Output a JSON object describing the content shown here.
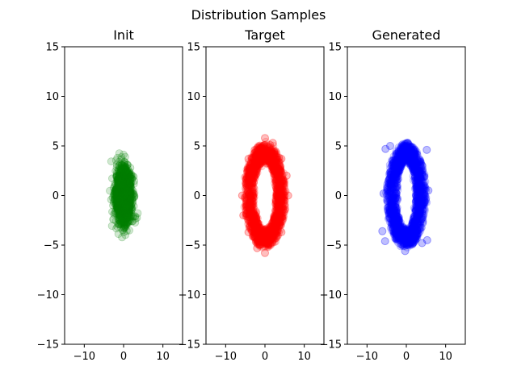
{
  "figure": {
    "title": "Distribution Samples"
  },
  "chart_data": [
    {
      "type": "scatter",
      "title": "Init",
      "xlabel": "",
      "ylabel": "",
      "xlim": [
        -15,
        15
      ],
      "ylim": [
        -15,
        15
      ],
      "xticks": [
        -10,
        0,
        10
      ],
      "yticks": [
        -15,
        -10,
        -5,
        0,
        5,
        10,
        15
      ],
      "tick_labels_x": [
        "−10",
        "0",
        "10"
      ],
      "tick_labels_y": [
        "−15",
        "−10",
        "−5",
        "0",
        "5",
        "10",
        "15"
      ],
      "grid": false,
      "color": "#008000",
      "distribution": {
        "shape": "gaussian",
        "center": [
          0,
          0
        ],
        "std": [
          1.0,
          1.3
        ]
      },
      "points": [
        [
          0,
          0
        ],
        [
          -0.5,
          1.2
        ],
        [
          0.6,
          -1.0
        ],
        [
          1.1,
          0.4
        ],
        [
          -1.2,
          -0.5
        ],
        [
          0.3,
          2.5
        ],
        [
          -0.4,
          -2.7
        ],
        [
          1.8,
          1.3
        ],
        [
          -1.6,
          1.6
        ],
        [
          2.2,
          -0.3
        ],
        [
          -2.3,
          0.2
        ],
        [
          0.2,
          3.4
        ],
        [
          -0.2,
          -3.5
        ],
        [
          1.4,
          -2.2
        ],
        [
          -1.3,
          -2.4
        ],
        [
          2.9,
          -2.1
        ],
        [
          -2.6,
          -2.4
        ],
        [
          1.0,
          3.1
        ],
        [
          -1.2,
          3.0
        ],
        [
          2.5,
          1.9
        ]
      ]
    },
    {
      "type": "scatter",
      "title": "Target",
      "xlabel": "",
      "ylabel": "",
      "xlim": [
        -15,
        15
      ],
      "ylim": [
        -15,
        15
      ],
      "xticks": [
        -10,
        0,
        10
      ],
      "yticks": [
        -15,
        -10,
        -5,
        0,
        5,
        10,
        15
      ],
      "tick_labels_x": [
        "−10",
        "0",
        "10"
      ],
      "tick_labels_y": [
        "−15",
        "−10",
        "−5",
        "0",
        "5",
        "10",
        "15"
      ],
      "grid": false,
      "color": "#ff0000",
      "distribution": {
        "shape": "ring",
        "center": [
          0,
          0
        ],
        "radius": [
          5.2,
          5.2
        ],
        "inner": [
          2.8,
          3.5
        ]
      },
      "points": [
        [
          5.9,
          0
        ],
        [
          -5.8,
          0
        ],
        [
          0,
          5.8
        ],
        [
          0,
          -5.8
        ],
        [
          4.2,
          3.7
        ],
        [
          -4.2,
          3.7
        ],
        [
          4.2,
          -3.7
        ],
        [
          -4.2,
          -3.7
        ],
        [
          3.0,
          0
        ],
        [
          -3.0,
          0
        ],
        [
          0,
          3.8
        ],
        [
          0,
          -3.8
        ],
        [
          5.5,
          2.0
        ],
        [
          -5.5,
          -2.0
        ],
        [
          2.0,
          5.3
        ],
        [
          -2.0,
          -5.3
        ]
      ]
    },
    {
      "type": "scatter",
      "title": "Generated",
      "xlabel": "",
      "ylabel": "",
      "xlim": [
        -15,
        15
      ],
      "ylim": [
        -15,
        15
      ],
      "xticks": [
        -10,
        0,
        10
      ],
      "yticks": [
        -15,
        -10,
        -5,
        0,
        5,
        10,
        15
      ],
      "tick_labels_x": [
        "−10",
        "0",
        "10"
      ],
      "tick_labels_y": [
        "−15",
        "−10",
        "−5",
        "0",
        "5",
        "10",
        "15"
      ],
      "grid": false,
      "color": "#0000ff",
      "distribution": {
        "shape": "ring",
        "center": [
          0,
          0
        ],
        "radius": [
          5.0,
          5.2
        ],
        "inner": [
          2.4,
          3.5
        ]
      },
      "points": [
        [
          5.2,
          4.6
        ],
        [
          -5.3,
          4.7
        ],
        [
          5.3,
          -4.5
        ],
        [
          -5.4,
          -4.6
        ],
        [
          -6.1,
          -3.6
        ],
        [
          5.6,
          0.5
        ],
        [
          -5.8,
          0.2
        ],
        [
          0.4,
          5.3
        ],
        [
          -0.3,
          -5.6
        ],
        [
          2.5,
          0
        ],
        [
          -2.6,
          0
        ],
        [
          0,
          3.6
        ],
        [
          0,
          -3.6
        ],
        [
          4.0,
          -4.8
        ],
        [
          -4.1,
          5.0
        ]
      ]
    }
  ]
}
